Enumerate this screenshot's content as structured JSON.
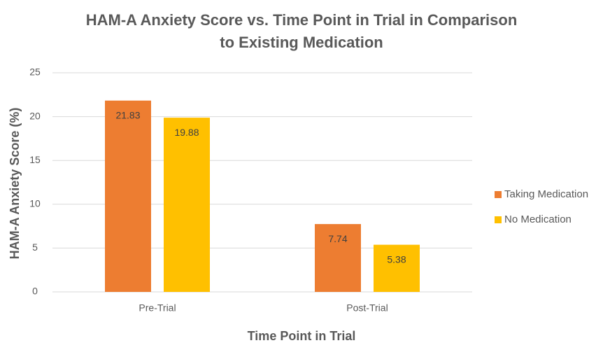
{
  "chart_data": {
    "type": "bar",
    "title": [
      "HAM-A Anxiety Score vs. Time Point in Trial in Comparison",
      "to Existing Medication"
    ],
    "x_label": "Time Point in Trial",
    "y_label": "HAM-A Anxiety Score (%)",
    "categories": [
      "Pre-Trial",
      "Post-Trial"
    ],
    "series": [
      {
        "name": "Taking Medication",
        "color": "#ed7d31",
        "values": [
          21.83,
          7.74
        ]
      },
      {
        "name": "No Medication",
        "color": "#ffc000",
        "values": [
          19.88,
          5.38
        ]
      }
    ],
    "ylim": [
      0,
      25
    ],
    "yticks": [
      0,
      5,
      10,
      15,
      20,
      25
    ],
    "grid": true,
    "legend": "right"
  }
}
